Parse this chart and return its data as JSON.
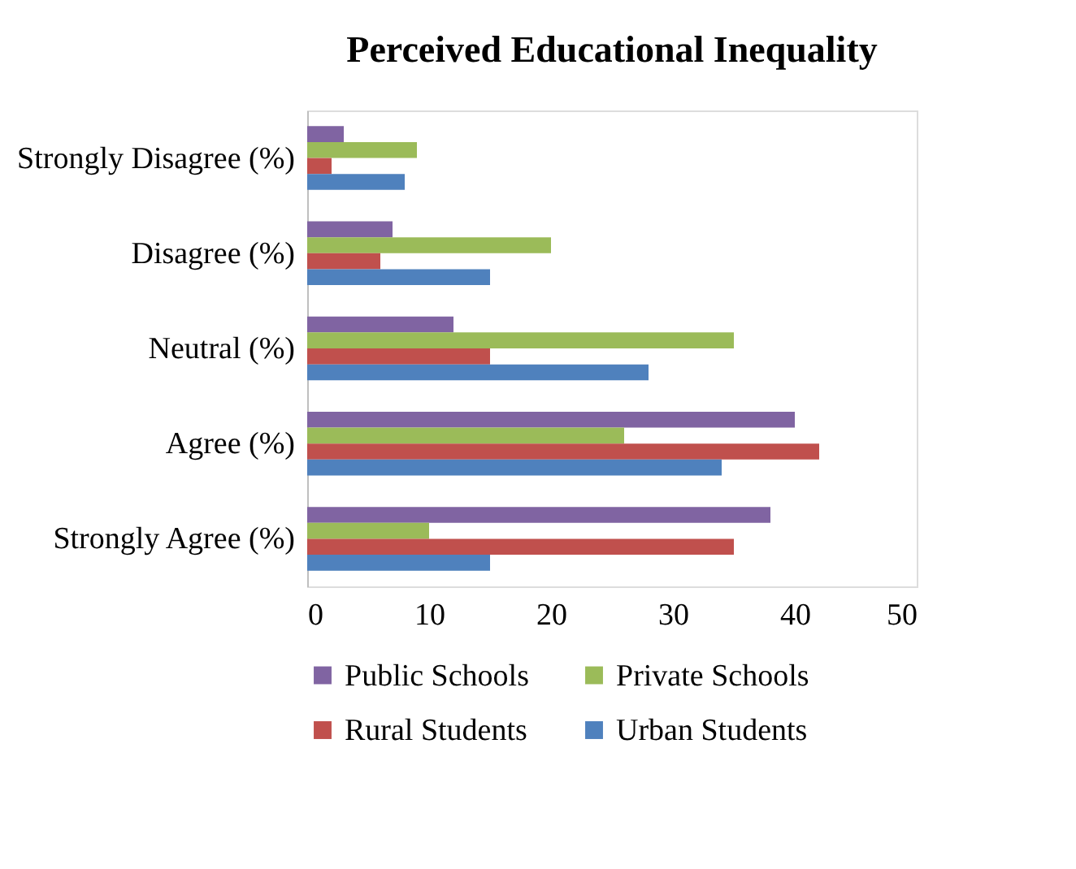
{
  "chart_data": {
    "type": "bar",
    "orientation": "horizontal",
    "title": "Perceived Educational Inequality",
    "categories": [
      "Strongly Disagree (%)",
      "Disagree (%)",
      "Neutral (%)",
      "Agree (%)",
      "Strongly Agree (%)"
    ],
    "series": [
      {
        "name": "Public Schools",
        "color": "#8064a2",
        "values": [
          3,
          7,
          12,
          40,
          38
        ]
      },
      {
        "name": "Private Schools",
        "color": "#9bbb59",
        "values": [
          9,
          20,
          35,
          26,
          10
        ]
      },
      {
        "name": "Rural Students",
        "color": "#c0504d",
        "values": [
          2,
          6,
          15,
          42,
          35
        ]
      },
      {
        "name": "Urban Students",
        "color": "#4f81bd",
        "values": [
          8,
          15,
          28,
          34,
          15
        ]
      }
    ],
    "xlim": [
      0,
      50
    ],
    "xticks": [
      0,
      10,
      20,
      30,
      40,
      50
    ],
    "grid": false,
    "legend": "bottom"
  }
}
